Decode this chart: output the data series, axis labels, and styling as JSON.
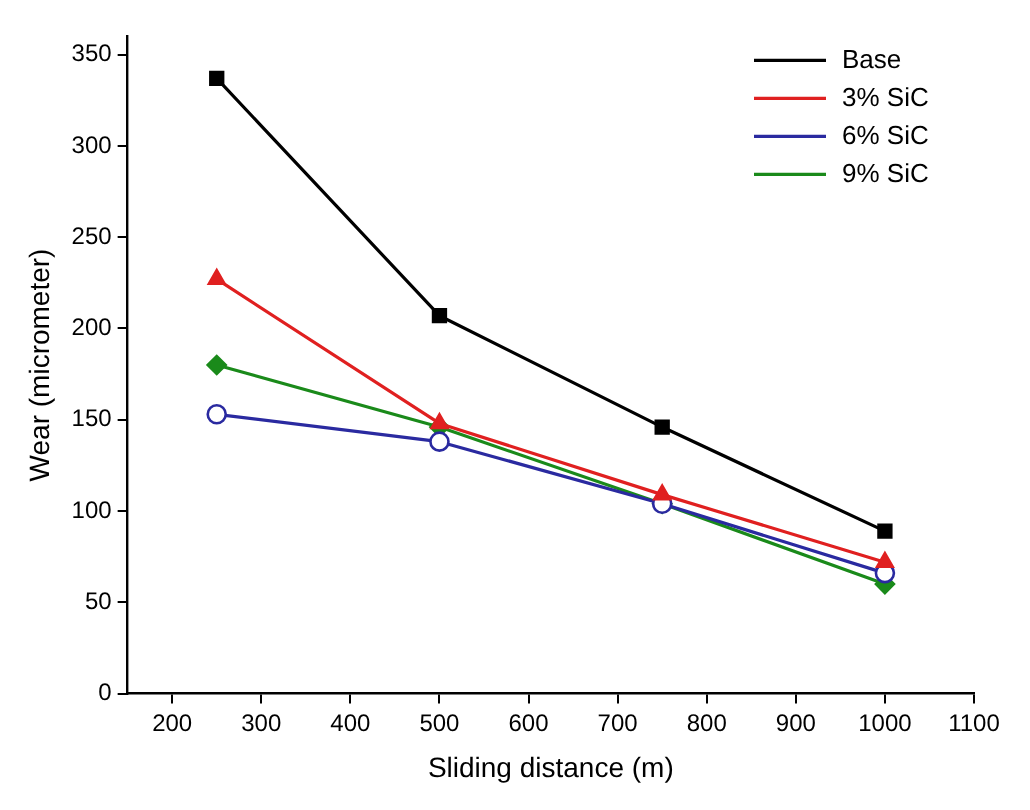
{
  "chart_data": {
    "type": "line",
    "xlabel": "Sliding distance (m)",
    "ylabel": "Wear (micrometer)",
    "x": [
      250,
      500,
      750,
      1000
    ],
    "series": [
      {
        "name": "Base",
        "color": "#000000",
        "marker": "square",
        "values": [
          337,
          207,
          146,
          89
        ]
      },
      {
        "name": "3% SiC",
        "color": "#e02020",
        "marker": "triangle",
        "values": [
          227,
          148,
          109,
          72
        ]
      },
      {
        "name": "6% SiC",
        "color": "#2a2aa0",
        "marker": "circle",
        "values": [
          153,
          138,
          104,
          66
        ]
      },
      {
        "name": "9% SiC",
        "color": "#1a8a1a",
        "marker": "diamond",
        "values": [
          180,
          146,
          104,
          60
        ]
      }
    ],
    "xlim": [
      150,
      1100
    ],
    "xticks": [
      200,
      300,
      400,
      500,
      600,
      700,
      800,
      900,
      1000,
      1100
    ],
    "ylim": [
      0,
      360
    ],
    "yticks": [
      0,
      50,
      100,
      150,
      200,
      250,
      300,
      350
    ],
    "grid": false,
    "legend": "top right",
    "line_style": "solid"
  }
}
